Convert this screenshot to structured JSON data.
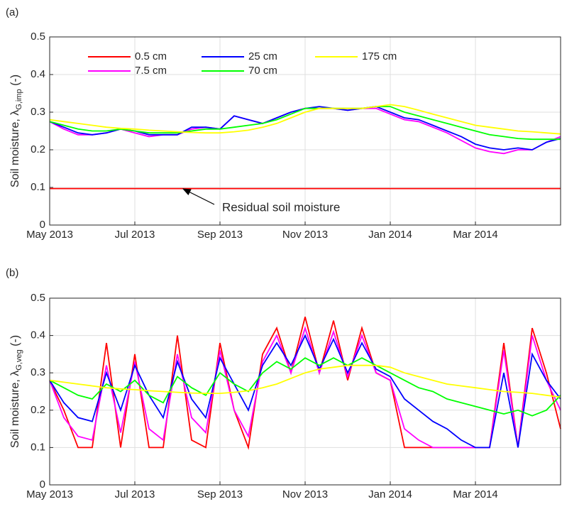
{
  "chart_data": [
    {
      "type": "line",
      "panel_label": "(a)",
      "ylabel": {
        "main": "Soil moisture, λ",
        "sub": "G,imp",
        "end": "(-)"
      },
      "categories": [
        "May 2013",
        null,
        null,
        null,
        null,
        null,
        "Jul 2013",
        null,
        null,
        null,
        null,
        null,
        "Sep 2013",
        null,
        null,
        null,
        null,
        null,
        "Nov 2013",
        null,
        null,
        null,
        null,
        null,
        "Jan 2014",
        null,
        null,
        null,
        null,
        null,
        "Mar 2014",
        null,
        null,
        null,
        null,
        null,
        null
      ],
      "ylim": [
        0,
        0.5
      ],
      "yticks": [
        0,
        0.1,
        0.2,
        0.3,
        0.4,
        0.5
      ],
      "grid": true,
      "legend": "upper left",
      "annotation": "Residual soil moisture",
      "series": [
        {
          "name": "0.5 cm",
          "color": "#ff0000",
          "values": [
            0.097,
            0.097,
            0.097,
            0.097,
            0.097,
            0.097,
            0.097,
            0.097,
            0.097,
            0.097,
            0.097,
            0.097,
            0.097,
            0.097,
            0.097,
            0.097,
            0.097,
            0.097,
            0.097,
            0.097,
            0.097,
            0.097,
            0.097,
            0.097,
            0.097,
            0.097,
            0.097,
            0.097,
            0.097,
            0.097,
            0.097,
            0.097,
            0.097,
            0.097,
            0.097,
            0.097,
            0.097
          ]
        },
        {
          "name": "7.5 cm",
          "color": "#ff00ff",
          "values": [
            0.275,
            0.255,
            0.24,
            0.24,
            0.245,
            0.255,
            0.245,
            0.235,
            0.24,
            0.24,
            0.255,
            0.26,
            0.255,
            0.29,
            0.28,
            0.27,
            0.285,
            0.3,
            0.31,
            0.31,
            0.31,
            0.305,
            0.31,
            0.31,
            0.295,
            0.28,
            0.275,
            0.26,
            0.245,
            0.225,
            0.205,
            0.195,
            0.19,
            0.2,
            0.2,
            0.22,
            0.235
          ]
        },
        {
          "name": "25 cm",
          "color": "#0000ff",
          "values": [
            0.275,
            0.26,
            0.245,
            0.24,
            0.245,
            0.255,
            0.25,
            0.24,
            0.24,
            0.24,
            0.26,
            0.26,
            0.255,
            0.29,
            0.28,
            0.27,
            0.285,
            0.3,
            0.31,
            0.315,
            0.31,
            0.305,
            0.31,
            0.315,
            0.3,
            0.285,
            0.28,
            0.265,
            0.25,
            0.235,
            0.215,
            0.205,
            0.2,
            0.205,
            0.2,
            0.22,
            0.23
          ]
        },
        {
          "name": "70 cm",
          "color": "#00ff00",
          "values": [
            0.275,
            0.265,
            0.255,
            0.25,
            0.25,
            0.255,
            0.25,
            0.245,
            0.245,
            0.245,
            0.25,
            0.255,
            0.255,
            0.26,
            0.265,
            0.27,
            0.28,
            0.295,
            0.31,
            0.31,
            0.31,
            0.31,
            0.31,
            0.315,
            0.315,
            0.3,
            0.29,
            0.28,
            0.27,
            0.26,
            0.25,
            0.24,
            0.235,
            0.23,
            0.228,
            0.228,
            0.228
          ]
        },
        {
          "name": "175 cm",
          "color": "#ffff00",
          "values": [
            0.28,
            0.275,
            0.27,
            0.265,
            0.26,
            0.257,
            0.255,
            0.252,
            0.25,
            0.248,
            0.246,
            0.245,
            0.245,
            0.248,
            0.252,
            0.26,
            0.27,
            0.285,
            0.3,
            0.31,
            0.31,
            0.31,
            0.31,
            0.315,
            0.32,
            0.315,
            0.305,
            0.295,
            0.285,
            0.275,
            0.265,
            0.26,
            0.255,
            0.25,
            0.248,
            0.245,
            0.242
          ]
        }
      ]
    },
    {
      "type": "line",
      "panel_label": "(b)",
      "ylabel": {
        "main": "Soil moisture, λ",
        "sub": "G,veg",
        "end": "(-)"
      },
      "categories": [
        "May 2013",
        null,
        null,
        null,
        null,
        null,
        "Jul 2013",
        null,
        null,
        null,
        null,
        null,
        "Sep 2013",
        null,
        null,
        null,
        null,
        null,
        "Nov 2013",
        null,
        null,
        null,
        null,
        null,
        "Jan 2014",
        null,
        null,
        null,
        null,
        null,
        "Mar 2014",
        null,
        null,
        null,
        null,
        null,
        null
      ],
      "ylim": [
        0,
        0.5
      ],
      "yticks": [
        0,
        0.1,
        0.2,
        0.3,
        0.4,
        0.5
      ],
      "grid": true,
      "series": [
        {
          "color": "#ff0000",
          "values": [
            0.28,
            0.2,
            0.1,
            0.1,
            0.38,
            0.1,
            0.35,
            0.1,
            0.1,
            0.4,
            0.12,
            0.1,
            0.38,
            0.2,
            0.1,
            0.35,
            0.42,
            0.3,
            0.45,
            0.3,
            0.44,
            0.28,
            0.42,
            0.3,
            0.28,
            0.1,
            0.1,
            0.1,
            0.1,
            0.1,
            0.1,
            0.1,
            0.38,
            0.1,
            0.42,
            0.3,
            0.15
          ]
        },
        {
          "color": "#ff00ff",
          "values": [
            0.28,
            0.18,
            0.13,
            0.12,
            0.32,
            0.14,
            0.33,
            0.15,
            0.12,
            0.35,
            0.18,
            0.14,
            0.36,
            0.2,
            0.13,
            0.33,
            0.4,
            0.3,
            0.42,
            0.3,
            0.41,
            0.29,
            0.4,
            0.3,
            0.28,
            0.15,
            0.12,
            0.1,
            0.1,
            0.1,
            0.1,
            0.1,
            0.36,
            0.1,
            0.4,
            0.28,
            0.2
          ]
        },
        {
          "color": "#0000ff",
          "values": [
            0.28,
            0.22,
            0.18,
            0.17,
            0.3,
            0.2,
            0.32,
            0.24,
            0.18,
            0.33,
            0.23,
            0.18,
            0.34,
            0.27,
            0.2,
            0.32,
            0.38,
            0.32,
            0.4,
            0.31,
            0.39,
            0.3,
            0.38,
            0.31,
            0.29,
            0.23,
            0.2,
            0.17,
            0.15,
            0.12,
            0.1,
            0.1,
            0.3,
            0.1,
            0.35,
            0.28,
            0.23
          ]
        },
        {
          "color": "#00ff00",
          "values": [
            0.28,
            0.26,
            0.24,
            0.23,
            0.27,
            0.25,
            0.28,
            0.24,
            0.22,
            0.29,
            0.26,
            0.24,
            0.3,
            0.27,
            0.25,
            0.3,
            0.33,
            0.31,
            0.34,
            0.32,
            0.34,
            0.32,
            0.34,
            0.32,
            0.3,
            0.28,
            0.26,
            0.25,
            0.23,
            0.22,
            0.21,
            0.2,
            0.19,
            0.2,
            0.185,
            0.2,
            0.24
          ]
        },
        {
          "color": "#ffff00",
          "values": [
            0.28,
            0.275,
            0.27,
            0.265,
            0.26,
            0.257,
            0.255,
            0.252,
            0.25,
            0.248,
            0.246,
            0.245,
            0.245,
            0.248,
            0.252,
            0.26,
            0.27,
            0.285,
            0.3,
            0.31,
            0.315,
            0.32,
            0.32,
            0.32,
            0.315,
            0.3,
            0.29,
            0.28,
            0.27,
            0.265,
            0.26,
            0.255,
            0.25,
            0.248,
            0.245,
            0.24,
            0.235
          ]
        }
      ]
    }
  ]
}
